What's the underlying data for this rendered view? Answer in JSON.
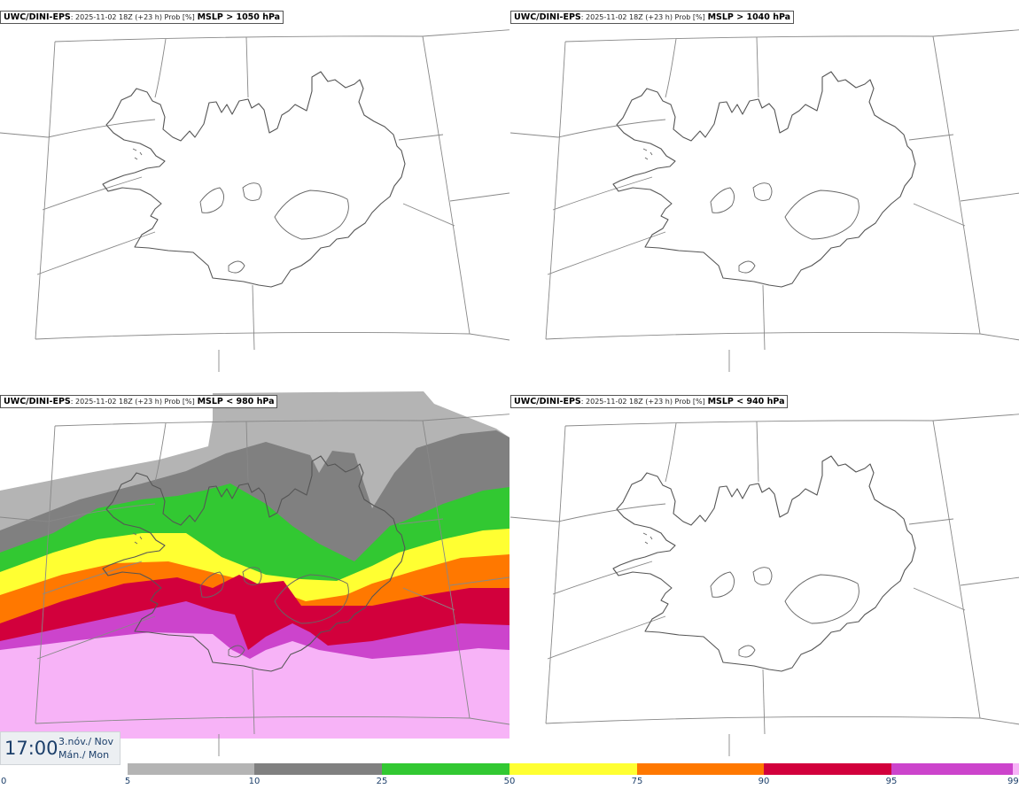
{
  "panels": [
    {
      "model": "UWC/DINI-EPS",
      "run": ": 2025-11-02 18Z (+23 h) Prob [%]",
      "threshold": "MSLP > 1050 hPa"
    },
    {
      "model": "UWC/DINI-EPS",
      "run": ": 2025-11-02 18Z (+23 h) Prob [%]",
      "threshold": "MSLP > 1040 hPa"
    },
    {
      "model": "UWC/DINI-EPS",
      "run": ": 2025-11-02 18Z (+23 h) Prob [%]",
      "threshold": "MSLP < 980 hPa"
    },
    {
      "model": "UWC/DINI-EPS",
      "run": ": 2025-11-02 18Z (+23 h) Prob [%]",
      "threshold": "MSLP < 940 hPa"
    }
  ],
  "valid_time": {
    "time": "17:00",
    "date_line1": "3.nóv./ Nov",
    "date_line2": "Mán./ Mon"
  },
  "colorbar": {
    "ticks": [
      "0",
      "5",
      "10",
      "25",
      "50",
      "75",
      "90",
      "95",
      "99"
    ],
    "colors": [
      "#ffffff",
      "#b4b4b4",
      "#808080",
      "#32c832",
      "#ffff32",
      "#ff7800",
      "#d2003c",
      "#cc44cc",
      "#f7b3f7"
    ]
  }
}
